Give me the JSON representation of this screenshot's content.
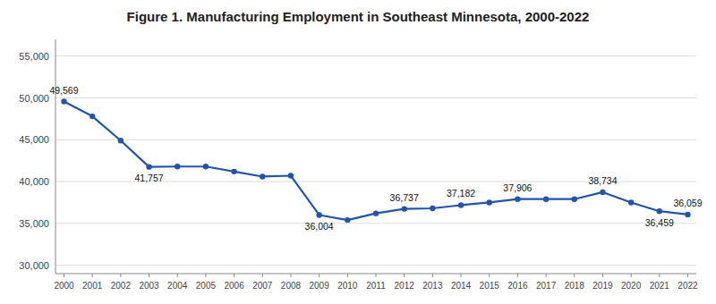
{
  "chart_data": {
    "type": "line",
    "title": "Figure 1. Manufacturing Employment in Southeast Minnesota, 2000-2022",
    "x": [
      2000,
      2001,
      2002,
      2003,
      2004,
      2005,
      2006,
      2007,
      2008,
      2009,
      2010,
      2011,
      2012,
      2013,
      2014,
      2015,
      2016,
      2017,
      2018,
      2019,
      2020,
      2021,
      2022
    ],
    "values": [
      49569,
      47800,
      44900,
      41757,
      41800,
      41800,
      41200,
      40600,
      40700,
      36004,
      35400,
      36200,
      36737,
      36800,
      37182,
      37500,
      37906,
      37900,
      37900,
      38734,
      37500,
      36459,
      36059
    ],
    "color": "#2255AA",
    "marker": "circle",
    "xlim": [
      1999.7,
      2022.3
    ],
    "xticks": [
      2000,
      2001,
      2002,
      2003,
      2004,
      2005,
      2006,
      2007,
      2008,
      2009,
      2010,
      2011,
      2012,
      2013,
      2014,
      2015,
      2016,
      2017,
      2018,
      2019,
      2020,
      2021,
      2022
    ],
    "ylim": [
      29000,
      57000
    ],
    "yticks": [
      {
        "value": 30000,
        "label": "30,000"
      },
      {
        "value": 35000,
        "label": "35,000"
      },
      {
        "value": 40000,
        "label": "40,000"
      },
      {
        "value": 45000,
        "label": "45,000"
      },
      {
        "value": 50000,
        "label": "50,000"
      },
      {
        "value": 55000,
        "label": "55,000"
      }
    ],
    "grid": true,
    "annotations": [
      {
        "x": 2000,
        "y": 49569,
        "text": "49,569"
      },
      {
        "x": 2003,
        "y": 41757,
        "text": "41,757"
      },
      {
        "x": 2009,
        "y": 36004,
        "text": "36,004"
      },
      {
        "x": 2012,
        "y": 36737,
        "text": "36,737"
      },
      {
        "x": 2014,
        "y": 37182,
        "text": "37,182"
      },
      {
        "x": 2016,
        "y": 37906,
        "text": "37,906"
      },
      {
        "x": 2019,
        "y": 38734,
        "text": "38,734"
      },
      {
        "x": 2021,
        "y": 36459,
        "text": "36,459"
      },
      {
        "x": 2022,
        "y": 36059,
        "text": "36,059"
      }
    ]
  }
}
